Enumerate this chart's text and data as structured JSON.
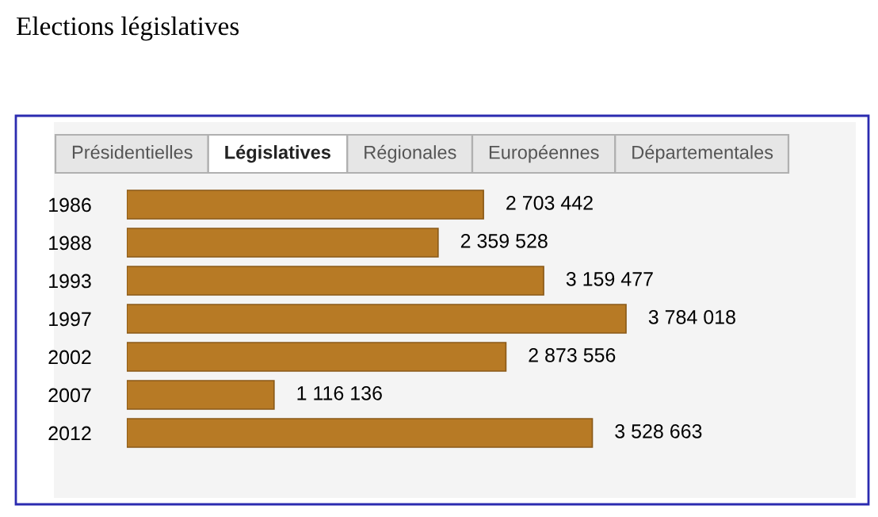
{
  "chart_data": {
    "type": "bar",
    "orientation": "horizontal",
    "title": "Elections législatives",
    "annotations": [
      "Présidentielles",
      "Législatives",
      "Régionales",
      "Européennes",
      "Départementales"
    ],
    "categories": [
      "1986",
      "1988",
      "1993",
      "1997",
      "2002",
      "2007",
      "2012"
    ],
    "values": [
      2703442,
      2359528,
      3159477,
      3784018,
      2873556,
      1116136,
      3528663
    ],
    "value_labels": [
      "2 703 442",
      "2 359 528",
      "3 159 477",
      "3 784 018",
      "2 873 556",
      "1 116 136",
      "3 528 663"
    ],
    "color": "#b77a25",
    "grid": false,
    "legend": false
  }
}
